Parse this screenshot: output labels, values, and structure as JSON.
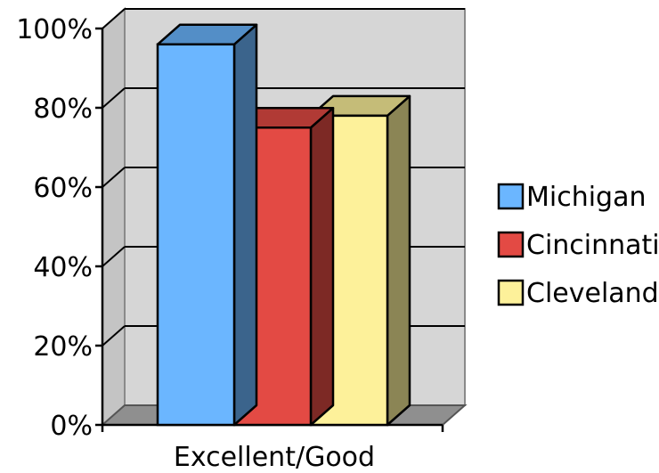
{
  "chart_data": {
    "type": "bar",
    "style": "3d-clustered-column",
    "categories": [
      "Excellent/Good"
    ],
    "series": [
      {
        "name": "Michigan",
        "values": [
          96
        ],
        "color": "#6bb6ff"
      },
      {
        "name": "Cincinnati",
        "values": [
          75
        ],
        "color": "#e34a44"
      },
      {
        "name": "Cleveland",
        "values": [
          78
        ],
        "color": "#fdf19a"
      }
    ],
    "y_ticks": [
      "0%",
      "20%",
      "40%",
      "60%",
      "80%",
      "100%"
    ],
    "ylim": [
      0,
      100
    ],
    "y_unit": "%",
    "grid": true,
    "legend_position": "right",
    "colors": {
      "wall": "#d6d6d6",
      "floor": "#8f8f8f",
      "gridline": "#000000"
    }
  }
}
